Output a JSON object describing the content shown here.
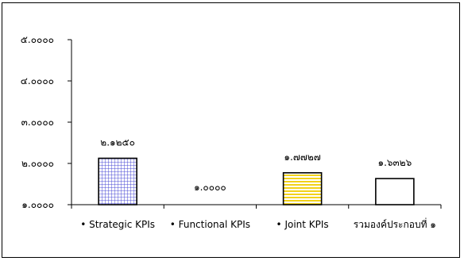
{
  "chart_data": {
    "type": "bar",
    "categories": [
      "• Strategic KPIs",
      "• Functional KPIs",
      "• Joint KPIs",
      "รวมองค์ประกอบที่ ๑"
    ],
    "values": [
      2.125,
      1.0,
      1.7727,
      1.6326
    ],
    "data_labels": [
      "๒.๑๒๕๐",
      "๑.๐๐๐๐",
      "๑.๗๗๒๗",
      "๑.๖๓๒๖"
    ],
    "yticks": [
      1.0,
      2.0,
      3.0,
      4.0,
      5.0
    ],
    "ytick_labels": [
      "๑.๐๐๐๐",
      "๒.๐๐๐๐",
      "๓.๐๐๐๐",
      "๔.๐๐๐๐",
      "๕.๐๐๐๐"
    ],
    "ylim": [
      1.0,
      5.0
    ],
    "grid": false,
    "title": "",
    "xlabel": "",
    "ylabel": "",
    "bar_fills": [
      "grid-blue",
      "none",
      "stripe-yellow",
      "white"
    ]
  }
}
